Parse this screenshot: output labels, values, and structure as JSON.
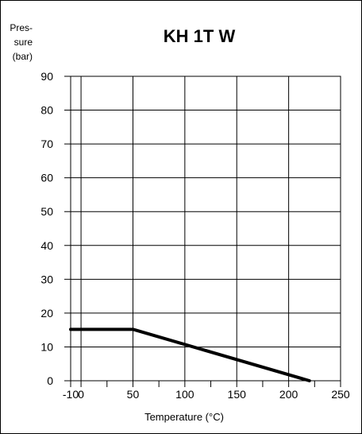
{
  "chart_data": {
    "type": "line",
    "title": "KH 1T W",
    "ylabel_lines": [
      "Pres-",
      "sure",
      "(bar)"
    ],
    "xlabel": "Temperature (°C)",
    "xlim": [
      -10,
      250
    ],
    "ylim": [
      0,
      90
    ],
    "x_ticks": [
      -10,
      0,
      50,
      100,
      150,
      200,
      250
    ],
    "y_ticks": [
      0,
      10,
      20,
      30,
      40,
      50,
      60,
      70,
      80,
      90
    ],
    "grid": true,
    "series": [
      {
        "x": [
          -10,
          50,
          220
        ],
        "y": [
          15.2,
          15.2,
          0
        ],
        "color": "#000000"
      }
    ]
  }
}
